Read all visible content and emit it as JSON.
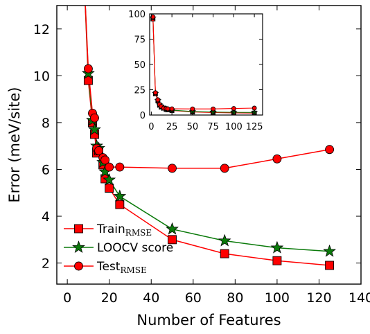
{
  "chart_data": [
    {
      "type": "line",
      "xlabel": "Number of Features",
      "ylabel": "Error (meV/site)",
      "xlim": [
        -5,
        140
      ],
      "ylim": [
        1.1,
        13
      ],
      "xticks": [
        0,
        20,
        40,
        60,
        80,
        100,
        120,
        140
      ],
      "yticks": [
        2,
        4,
        6,
        8,
        10,
        12
      ],
      "grid": false,
      "legend_position": "bottom-left",
      "series": [
        {
          "name": "Train",
          "name_subscript": "RMSE",
          "color": "#ff0000",
          "marker": "square",
          "x": [
            8,
            10,
            12,
            13,
            14,
            15,
            17,
            18,
            20,
            25,
            50,
            75,
            100,
            125
          ],
          "y": [
            14.2,
            9.8,
            8.0,
            7.5,
            6.7,
            6.8,
            6.2,
            5.6,
            5.2,
            4.5,
            3.0,
            2.4,
            2.1,
            1.9
          ]
        },
        {
          "name": "LOOCV score",
          "color": "#0a7a0a",
          "marker": "star",
          "x": [
            8,
            10,
            12,
            13,
            14,
            15,
            17,
            18,
            20,
            25,
            50,
            75,
            100,
            125
          ],
          "y": [
            14.2,
            10.1,
            8.1,
            7.7,
            7.0,
            6.9,
            6.3,
            5.9,
            5.55,
            4.85,
            3.45,
            2.95,
            2.65,
            2.5
          ]
        },
        {
          "name": "Test",
          "name_subscript": "RMSE",
          "color": "#ff0000",
          "marker": "circle",
          "x": [
            8,
            10,
            12,
            13,
            14,
            15,
            17,
            18,
            20,
            25,
            50,
            75,
            100,
            125
          ],
          "y": [
            14.2,
            10.3,
            8.4,
            8.2,
            6.9,
            6.8,
            6.5,
            6.4,
            6.1,
            6.1,
            6.05,
            6.05,
            6.45,
            6.85
          ]
        }
      ]
    },
    {
      "type": "line",
      "role": "inset",
      "xlim": [
        -2,
        135
      ],
      "ylim": [
        0,
        100
      ],
      "xticks": [
        0,
        25,
        50,
        75,
        100,
        125
      ],
      "yticks": [
        0,
        25,
        50,
        75,
        100
      ],
      "grid": false,
      "series": [
        {
          "name": "Train",
          "color": "#ff0000",
          "marker": "square",
          "x": [
            2,
            5,
            8,
            10,
            12,
            15,
            18,
            20,
            25,
            50,
            75,
            100,
            125
          ],
          "y": [
            95,
            21,
            14,
            9.8,
            8,
            6.8,
            5.6,
            5.2,
            4.5,
            3,
            2.4,
            2.1,
            1.9
          ]
        },
        {
          "name": "LOOCV score",
          "color": "#0a7a0a",
          "marker": "star",
          "x": [
            2,
            5,
            8,
            10,
            12,
            15,
            18,
            20,
            25,
            50,
            75,
            100,
            125
          ],
          "y": [
            96,
            21.5,
            14.5,
            10.1,
            8.1,
            6.9,
            5.9,
            5.55,
            4.85,
            3.45,
            2.95,
            2.65,
            2.5
          ]
        },
        {
          "name": "Test",
          "color": "#ff0000",
          "marker": "circle",
          "x": [
            2,
            5,
            8,
            10,
            12,
            15,
            18,
            20,
            25,
            50,
            75,
            100,
            125
          ],
          "y": [
            97,
            22,
            15,
            10.3,
            8.4,
            6.8,
            6.4,
            6.1,
            6.1,
            6.05,
            6.05,
            6.45,
            6.85
          ]
        }
      ]
    }
  ]
}
